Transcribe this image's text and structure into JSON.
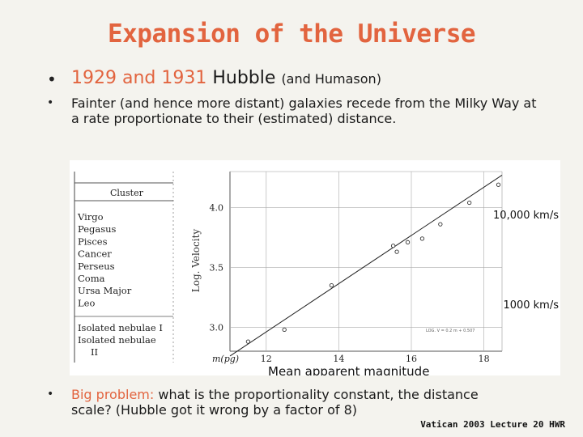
{
  "title": "Expansion of the Universe",
  "bullets": {
    "b1": {
      "years": "1929 and 1931",
      "name": "Hubble",
      "extra": "(and Humason)"
    },
    "b2": "Fainter (and hence more distant) galaxies recede from the Milky Way at a rate proportionate to their (estimated) distance.",
    "b3": {
      "lead": "Big problem:",
      "hl": "what is the proportionality constant,",
      "rest": " the distance scale? (Hubble got it wrong by a factor of 8)"
    }
  },
  "bullet_glyph": "•",
  "table": {
    "header": "Cluster",
    "rows": [
      "Virgo",
      "Pegasus",
      "Pisces",
      "Cancer",
      "Perseus",
      "Coma",
      "Ursa Major",
      "Leo"
    ],
    "extra_rows": [
      "Isolated nebulae I",
      "Isolated nebulae",
      "II"
    ]
  },
  "chart_data": {
    "type": "scatter",
    "ylabel": "Log. Velocity",
    "xlabel": "m(pg)",
    "xlabel_caption": "Mean apparent magnitude",
    "annotations": [
      "10,000 km/s",
      "1000 km/s"
    ],
    "formula": "LOG. V = 0.2 m + 0.507",
    "x_ticks": [
      "12",
      "14",
      "16",
      "18"
    ],
    "y_ticks": [
      "3.0",
      "3.5",
      "4.0"
    ],
    "xlim": [
      11,
      18.5
    ],
    "ylim": [
      2.8,
      4.3
    ],
    "points": [
      {
        "x": 11.5,
        "y": 2.88
      },
      {
        "x": 12.5,
        "y": 2.98
      },
      {
        "x": 13.8,
        "y": 3.35
      },
      {
        "x": 15.5,
        "y": 3.68
      },
      {
        "x": 15.6,
        "y": 3.63
      },
      {
        "x": 15.9,
        "y": 3.71
      },
      {
        "x": 16.3,
        "y": 3.74
      },
      {
        "x": 16.8,
        "y": 3.86
      },
      {
        "x": 17.6,
        "y": 4.04
      },
      {
        "x": 18.4,
        "y": 4.19
      }
    ],
    "fit_line": {
      "x": [
        11.0,
        18.5
      ],
      "y": [
        2.76,
        4.27
      ]
    }
  },
  "footer": "Vatican 2003 Lecture 20 HWR"
}
